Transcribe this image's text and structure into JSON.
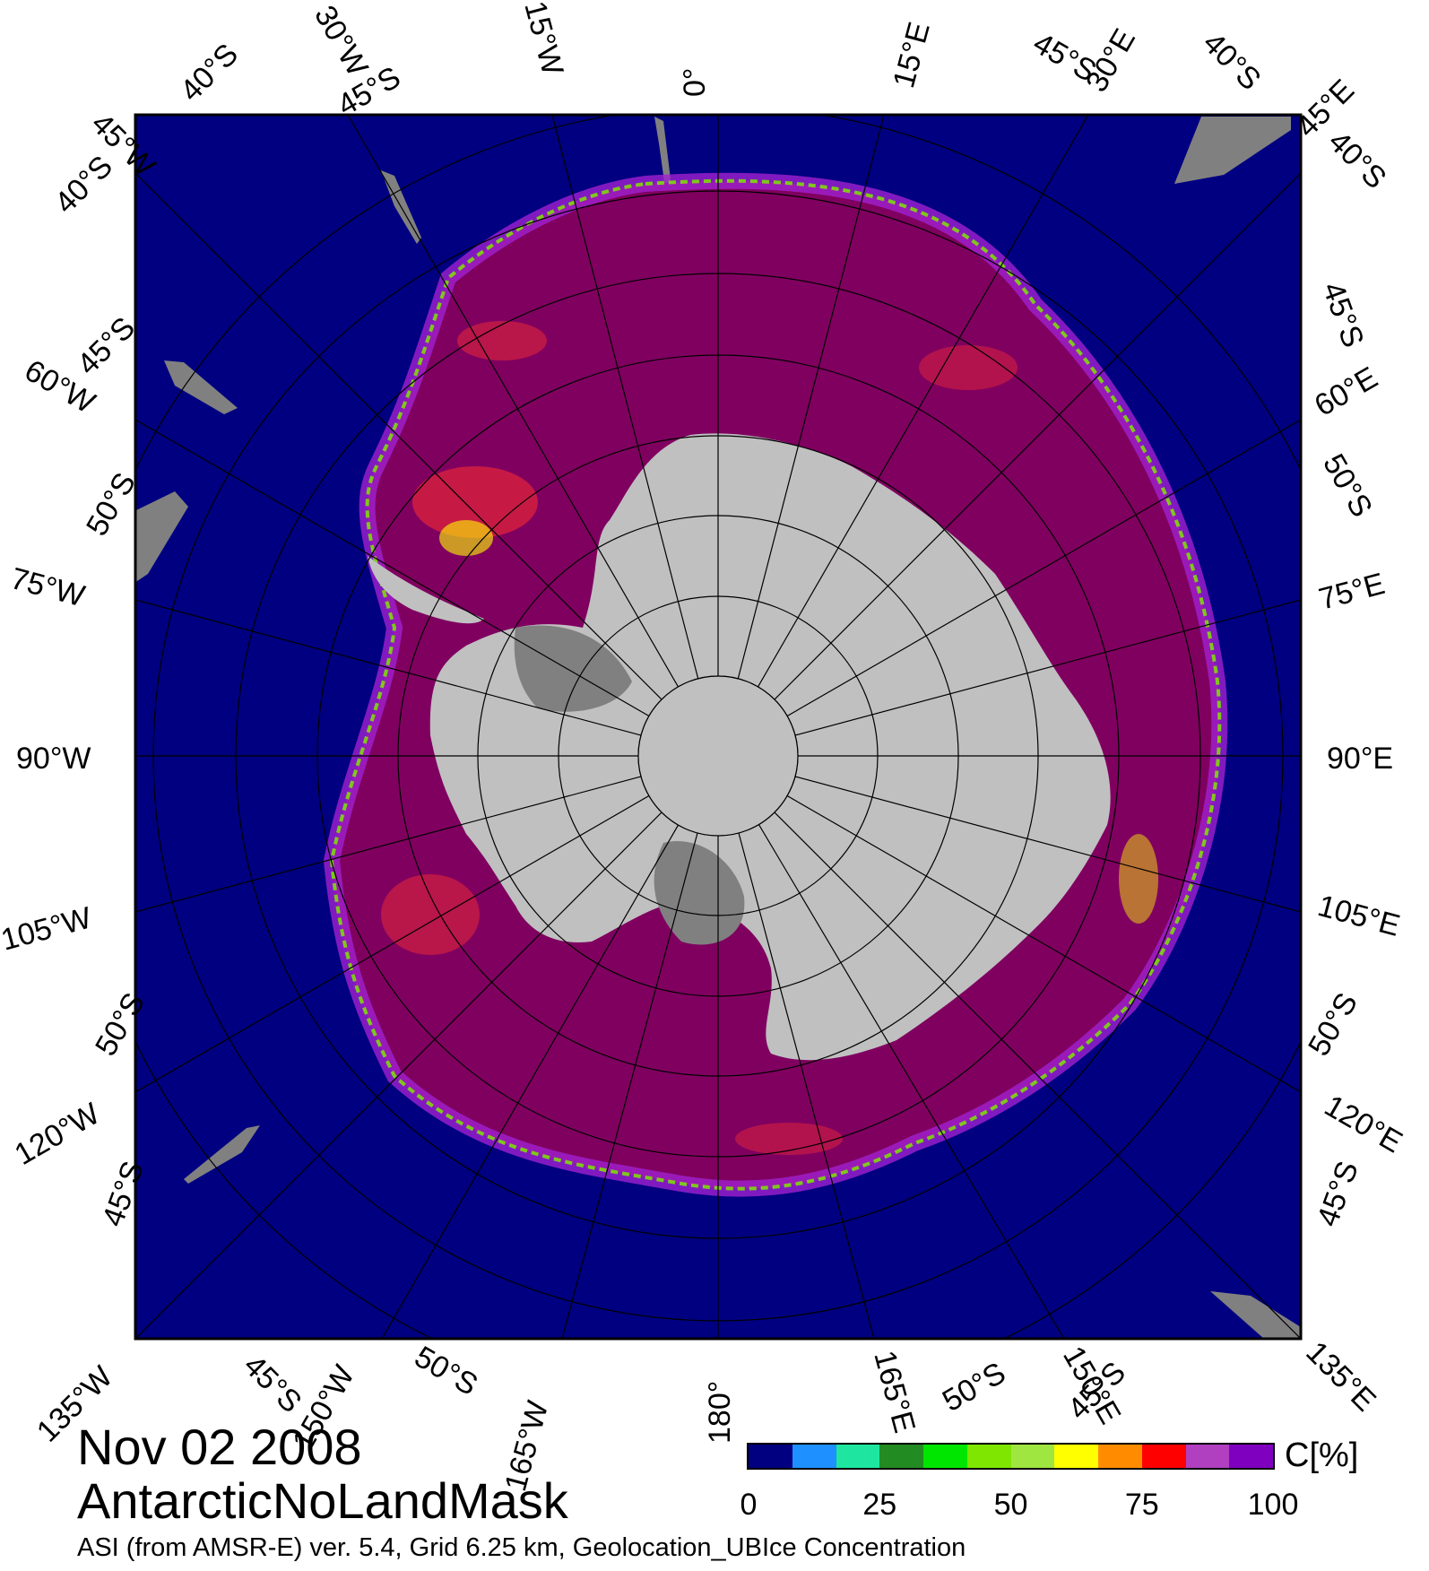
{
  "map": {
    "date": "Nov 02 2008",
    "region": "AntarcticNoLandMask",
    "footer": "ASI (from AMSR-E) ver. 5.4,  Grid 6.25 km, Geolocation_UB",
    "footer_right": "Ice Concentration",
    "colors": {
      "ocean": "#000080",
      "land_mask": "#808080",
      "continent": "#c0c0c0",
      "ice_dominant": "#800060",
      "ice_mid": "#a020d0"
    },
    "top_labels": [
      "45°W",
      "40°S",
      "30°W",
      "45°S",
      "15°W",
      "0°",
      "15°E",
      "45°S",
      "30°E",
      "40°S",
      "45°E"
    ],
    "left_labels": [
      "40°S",
      "45°S",
      "60°W",
      "50°S",
      "75°W",
      "90°W",
      "105°W",
      "50°S",
      "120°W",
      "45°S"
    ],
    "right_labels": [
      "40°S",
      "45°S",
      "60°E",
      "50°S",
      "75°E",
      "90°E",
      "105°E",
      "50°S",
      "120°E",
      "45°S"
    ],
    "bottom_labels": [
      "135°W",
      "45°S",
      "150°W",
      "50°S",
      "165°W",
      "180°",
      "165°E",
      "50°S",
      "150°E",
      "45°S",
      "135°E"
    ]
  },
  "legend": {
    "unit": "C[%]",
    "ticks": [
      "0",
      "25",
      "50",
      "75",
      "100"
    ],
    "tick_values": [
      0,
      25,
      50,
      75,
      100
    ],
    "colors": [
      "#000080",
      "#1e90ff",
      "#1ee6a0",
      "#228b22",
      "#00e600",
      "#7ee600",
      "#a0e640",
      "#ffff00",
      "#ff8c00",
      "#ff0000",
      "#b040c0",
      "#8000c0"
    ]
  }
}
